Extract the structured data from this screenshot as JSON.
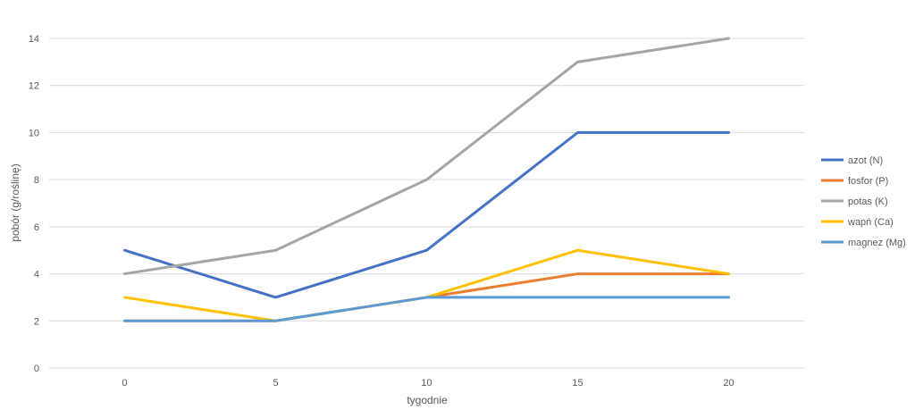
{
  "chart_data": {
    "type": "line",
    "title": "",
    "xlabel": "tygodnie",
    "ylabel": "pobór (g/roślinę)",
    "x": [
      0,
      5,
      10,
      15,
      20
    ],
    "categories": [
      "0",
      "5",
      "10",
      "15",
      "20"
    ],
    "ylim": [
      0,
      14
    ],
    "yticks": [
      0,
      2,
      4,
      6,
      8,
      10,
      12,
      14
    ],
    "grid": true,
    "legend_position": "right",
    "series": [
      {
        "name": "azot (N)",
        "color": "#4472C4",
        "values": [
          5,
          3,
          5,
          10,
          10
        ]
      },
      {
        "name": "fosfor (P)",
        "color": "#ED7D31",
        "values": [
          2,
          2,
          3,
          4,
          4
        ]
      },
      {
        "name": "potas (K)",
        "color": "#A5A5A5",
        "values": [
          4,
          5,
          8,
          13,
          14
        ]
      },
      {
        "name": "wapń (Ca)",
        "color": "#FFC000",
        "values": [
          3,
          2,
          3,
          5,
          4
        ]
      },
      {
        "name": "magnez (Mg)",
        "color": "#5B9BD5",
        "values": [
          2,
          2,
          3,
          3,
          3
        ]
      }
    ]
  }
}
